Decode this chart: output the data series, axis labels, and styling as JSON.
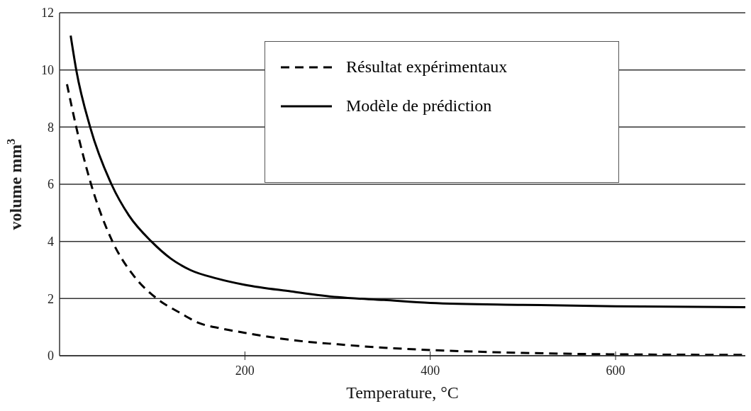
{
  "chart_data": {
    "type": "line",
    "xlabel": "Temperature, °C",
    "ylabel": "volume mm$^{3}$",
    "xlim": [
      0,
      740
    ],
    "xticks": [
      200,
      400,
      600
    ],
    "ylim": [
      0,
      12
    ],
    "yticks": [
      0,
      2,
      4,
      6,
      8,
      10,
      12
    ],
    "grid": "y",
    "legend": "top",
    "marker": "none",
    "series": [
      {
        "name": "Résultat expérimentaux",
        "color": "#000000",
        "line_style": "dashed",
        "x": [
          8,
          18,
          34,
          57,
          80,
          105,
          130,
          150,
          175,
          200,
          250,
          300,
          350,
          400,
          500,
          600,
          740
        ],
        "values": [
          9.5,
          8,
          6,
          4,
          2.8,
          2,
          1.5,
          1.15,
          0.95,
          0.8,
          0.55,
          0.4,
          0.28,
          0.2,
          0.1,
          0.05,
          0.03
        ]
      },
      {
        "name": "Modèle de prédiction",
        "color": "#000000",
        "line_style": "solid",
        "x": [
          12,
          18,
          33,
          56,
          75,
          99,
          120,
          141,
          170,
          200,
          250,
          300,
          350,
          400,
          500,
          600,
          740
        ],
        "values": [
          11.2,
          10,
          8,
          6,
          4.9,
          4,
          3.4,
          3,
          2.7,
          2.48,
          2.25,
          2.05,
          1.95,
          1.85,
          1.78,
          1.73,
          1.7
        ]
      }
    ]
  }
}
